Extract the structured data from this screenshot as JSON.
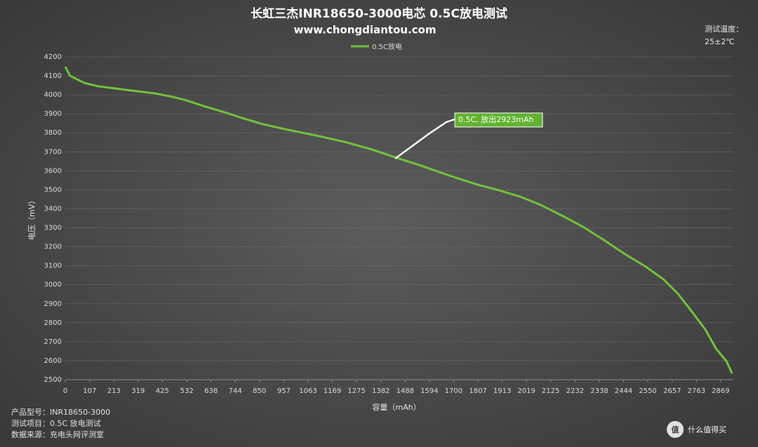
{
  "chart_data": {
    "type": "line",
    "title": "长虹三杰INR18650-3000电芯 0.5C放电测试",
    "subtitle": "www.chongdiantou.com",
    "temperature_label": "测试温度：",
    "temperature": "25±2℃",
    "ylabel": "电压（mV）",
    "xlabel": "容量（mAh）",
    "annotation": "0.5C, 放出2923mAh",
    "notes": [
      "产品型号：INR18650-3000",
      "测试项目：0.5C 放电测试",
      "数据来源：充电头网评测室"
    ],
    "watermark_logo": "值",
    "watermark": "什么值得买",
    "xlim": [
      0,
      2925
    ],
    "xticks": [
      0,
      107,
      213,
      319,
      425,
      532,
      638,
      744,
      850,
      957,
      1063,
      1169,
      1275,
      1382,
      1488,
      1594,
      1700,
      1807,
      1913,
      2019,
      2125,
      2232,
      2338,
      2444,
      2550,
      2657,
      2763,
      2869
    ],
    "ylim": [
      2500,
      4200
    ],
    "yticks": [
      2500,
      2600,
      2700,
      2800,
      2900,
      3000,
      3100,
      3200,
      3300,
      3400,
      3500,
      3600,
      3700,
      3800,
      3900,
      4000,
      4100,
      4200
    ],
    "grid": true,
    "x": [
      0,
      21,
      83,
      144,
      267,
      390,
      467,
      529,
      605,
      698,
      774,
      867,
      974,
      1097,
      1220,
      1343,
      1451,
      1558,
      1681,
      1804,
      1896,
      1988,
      2081,
      2173,
      2265,
      2357,
      2449,
      2541,
      2618,
      2680,
      2741,
      2803,
      2849,
      2895,
      2919
    ],
    "series": [
      {
        "name": "0.5C放电",
        "color": "#72c23c",
        "values": [
          4148,
          4100,
          4063,
          4045,
          4026,
          4008,
          3990,
          3971,
          3941,
          3908,
          3878,
          3845,
          3816,
          3786,
          3753,
          3712,
          3668,
          3627,
          3575,
          3527,
          3498,
          3465,
          3420,
          3365,
          3306,
          3236,
          3162,
          3095,
          3029,
          2955,
          2862,
          2762,
          2663,
          2596,
          2533
        ]
      }
    ]
  }
}
